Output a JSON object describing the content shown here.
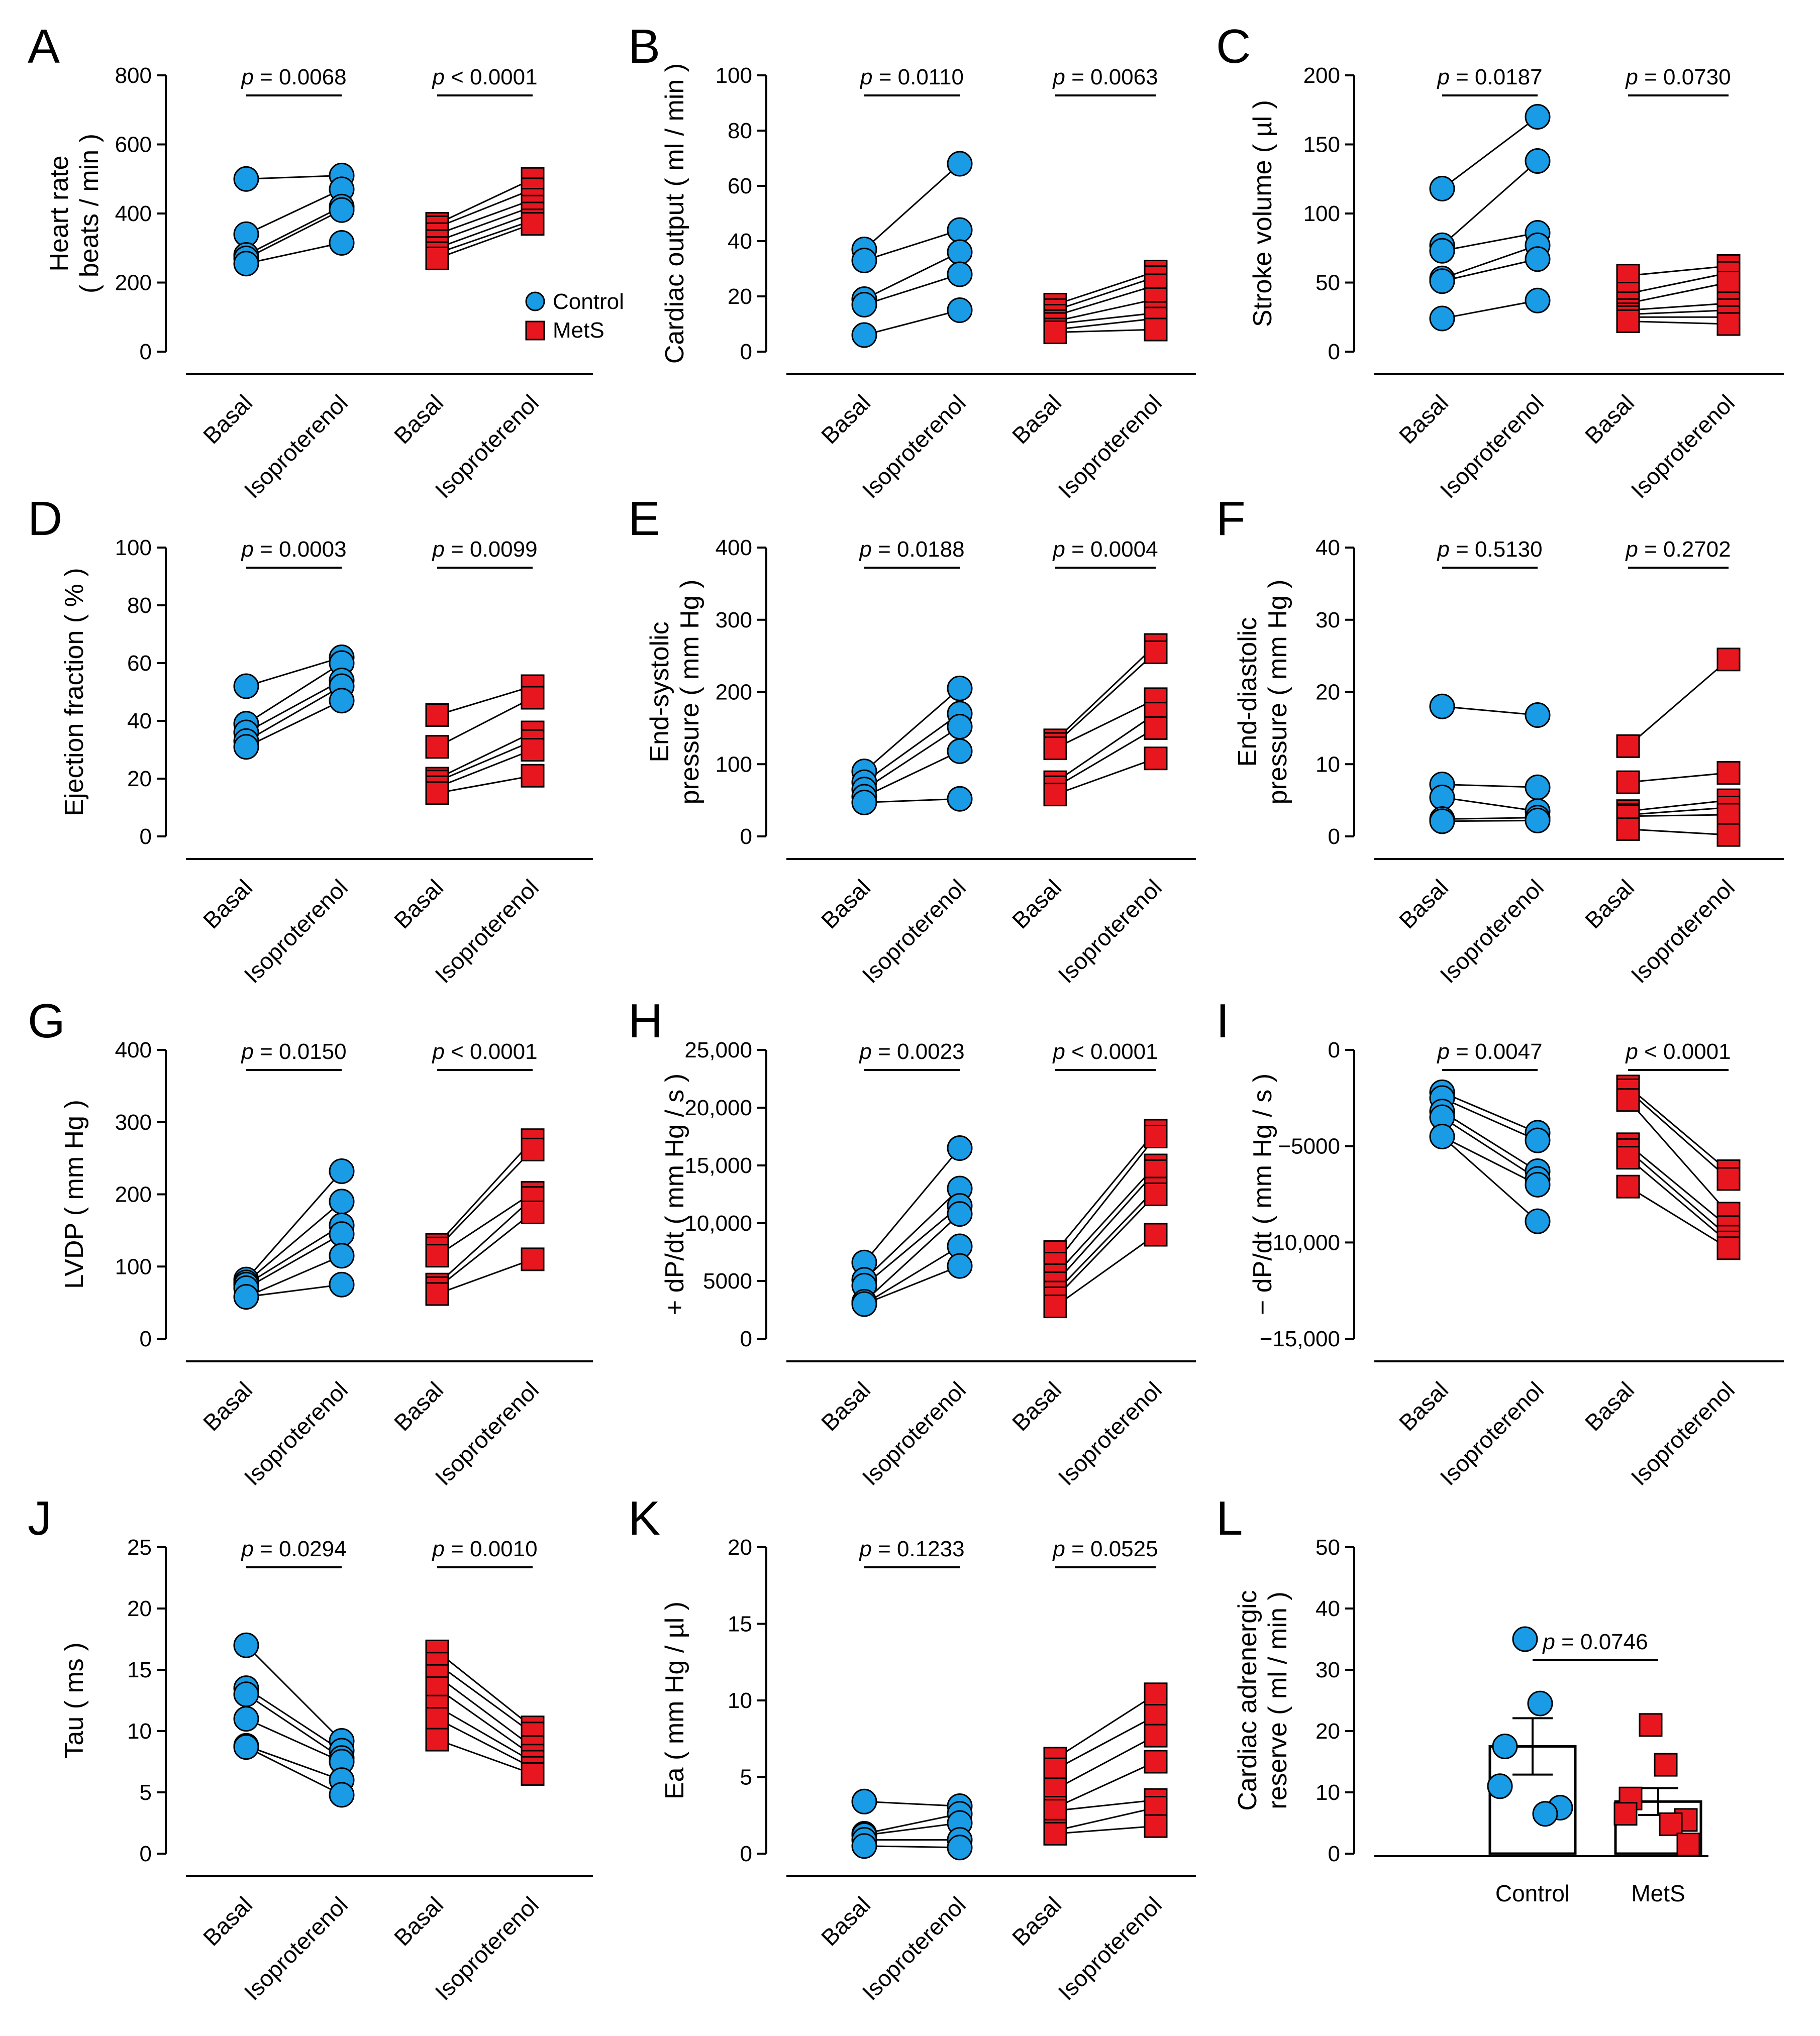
{
  "colors": {
    "control": "#1a9be6",
    "mets": "#e8171f",
    "line": "#000000",
    "bar": "#ffffff"
  },
  "legend": {
    "control": "Control",
    "mets": "MetS"
  },
  "chart_data": [
    {
      "letter": "A",
      "type": "scatter",
      "ylabel": [
        "Heart rate",
        "( beats / min )"
      ],
      "ylim": [
        0,
        800
      ],
      "yticks": [
        0,
        200,
        400,
        600,
        800
      ],
      "ytick_labels": [
        "0",
        "200",
        "400",
        "600",
        "800"
      ],
      "categories": [
        "Basal",
        "Isoproterenol",
        "Basal",
        "Isoproterenol"
      ],
      "pvalues": [
        {
          "prefix": "p",
          "text": " = 0.0068"
        },
        {
          "prefix": "p",
          "text": " < 0.0001"
        }
      ],
      "control": {
        "name": "Control",
        "basal": [
          500,
          340,
          280,
          270,
          255
        ],
        "iso": [
          510,
          470,
          420,
          410,
          315
        ]
      },
      "mets": {
        "name": "MetS",
        "basal": [
          370,
          360,
          340,
          320,
          300,
          285,
          270
        ],
        "iso": [
          500,
          470,
          440,
          420,
          400,
          380,
          370
        ]
      }
    },
    {
      "letter": "B",
      "type": "scatter",
      "ylabel": [
        "Cardiac output ( ml / min )"
      ],
      "ylim": [
        0,
        100
      ],
      "yticks": [
        0,
        20,
        40,
        60,
        80,
        100
      ],
      "ytick_labels": [
        "0",
        "20",
        "40",
        "60",
        "80",
        "100"
      ],
      "categories": [
        "Basal",
        "Isoproterenol",
        "Basal",
        "Isoproterenol"
      ],
      "pvalues": [
        {
          "prefix": "p",
          "text": " = 0.0110"
        },
        {
          "prefix": "p",
          "text": " = 0.0063"
        }
      ],
      "control": {
        "name": "Control",
        "basal": [
          37,
          33,
          19,
          17,
          6
        ],
        "iso": [
          68,
          44,
          36,
          28,
          15
        ]
      },
      "mets": {
        "name": "MetS",
        "basal": [
          17,
          15,
          13,
          11,
          10,
          8,
          7
        ],
        "iso": [
          29,
          27,
          24,
          19,
          14,
          12,
          8
        ]
      }
    },
    {
      "letter": "C",
      "type": "scatter",
      "ylabel": [
        "Stroke volume ( µl )"
      ],
      "ylim": [
        0,
        200
      ],
      "yticks": [
        0,
        50,
        100,
        150,
        200
      ],
      "ytick_labels": [
        "0",
        "50",
        "100",
        "150",
        "200"
      ],
      "categories": [
        "Basal",
        "Isoproterenol",
        "Basal",
        "Isoproterenol"
      ],
      "pvalues": [
        {
          "prefix": "p",
          "text": " = 0.0187"
        },
        {
          "prefix": "p",
          "text": " = 0.0730"
        }
      ],
      "control": {
        "name": "Control",
        "basal": [
          118,
          77,
          73,
          53,
          51,
          24
        ],
        "iso": [
          170,
          138,
          86,
          77,
          67,
          37
        ]
      },
      "mets": {
        "name": "MetS",
        "basal": [
          55,
          42,
          35,
          30,
          27,
          25,
          22
        ],
        "iso": [
          62,
          57,
          50,
          35,
          30,
          25,
          20
        ]
      }
    },
    {
      "letter": "D",
      "type": "scatter",
      "ylabel": [
        "Ejection fraction ( % )"
      ],
      "ylim": [
        0,
        100
      ],
      "yticks": [
        0,
        20,
        40,
        60,
        80,
        100
      ],
      "ytick_labels": [
        "0",
        "20",
        "40",
        "60",
        "80",
        "100"
      ],
      "categories": [
        "Basal",
        "Isoproterenol",
        "Basal",
        "Isoproterenol"
      ],
      "pvalues": [
        {
          "prefix": "p",
          "text": " = 0.0003"
        },
        {
          "prefix": "p",
          "text": " = 0.0099"
        }
      ],
      "control": {
        "name": "Control",
        "basal": [
          52,
          39,
          36,
          33,
          31
        ],
        "iso": [
          62,
          60,
          54,
          52,
          47
        ]
      },
      "mets": {
        "name": "MetS",
        "basal": [
          42,
          31,
          20,
          19,
          17,
          15
        ],
        "iso": [
          52,
          48,
          36,
          33,
          30,
          21
        ]
      }
    },
    {
      "letter": "E",
      "type": "scatter",
      "ylabel": [
        "End-systolic",
        "pressure ( mm Hg )"
      ],
      "ylim": [
        0,
        400
      ],
      "yticks": [
        0,
        100,
        200,
        300,
        400
      ],
      "ytick_labels": [
        "0",
        "100",
        "200",
        "300",
        "400"
      ],
      "categories": [
        "Basal",
        "Isoproterenol",
        "Basal",
        "Isoproterenol"
      ],
      "pvalues": [
        {
          "prefix": "p",
          "text": " = 0.0188"
        },
        {
          "prefix": "p",
          "text": " = 0.0004"
        }
      ],
      "control": {
        "name": "Control",
        "basal": [
          90,
          75,
          65,
          55,
          47
        ],
        "iso": [
          205,
          170,
          152,
          118,
          52
        ]
      },
      "mets": {
        "name": "MetS",
        "basal": [
          133,
          128,
          122,
          75,
          68,
          58
        ],
        "iso": [
          265,
          255,
          190,
          170,
          150,
          108
        ]
      }
    },
    {
      "letter": "F",
      "type": "scatter",
      "ylabel": [
        "End-diastolic",
        "pressure ( mm Hg )"
      ],
      "ylim": [
        0,
        40
      ],
      "yticks": [
        0,
        10,
        20,
        30,
        40
      ],
      "ytick_labels": [
        "0",
        "10",
        "20",
        "30",
        "40"
      ],
      "categories": [
        "Basal",
        "Isoproterenol",
        "Basal",
        "Isoproterenol"
      ],
      "pvalues": [
        {
          "prefix": "p",
          "text": " = 0.5130"
        },
        {
          "prefix": "p",
          "text": " = 0.2702"
        }
      ],
      "control": {
        "name": "Control",
        "basal": [
          18,
          7.2,
          5.4,
          2.4,
          2.1
        ],
        "iso": [
          16.8,
          6.8,
          3.5,
          2.6,
          2.2
        ]
      },
      "mets": {
        "name": "MetS",
        "basal": [
          12.5,
          7.5,
          3.5,
          3,
          2.8,
          1
        ],
        "iso": [
          24.5,
          8.8,
          5,
          4,
          3,
          0.2
        ]
      }
    },
    {
      "letter": "G",
      "type": "scatter",
      "ylabel": [
        "LVDP ( mm Hg )"
      ],
      "ylim": [
        0,
        400
      ],
      "yticks": [
        0,
        100,
        200,
        300,
        400
      ],
      "ytick_labels": [
        "0",
        "100",
        "200",
        "300",
        "400"
      ],
      "categories": [
        "Basal",
        "Isoproterenol",
        "Basal",
        "Isoproterenol"
      ],
      "pvalues": [
        {
          "prefix": "p",
          "text": " = 0.0150"
        },
        {
          "prefix": "p",
          "text": " < 0.0001"
        }
      ],
      "control": {
        "name": "Control",
        "basal": [
          82,
          78,
          75,
          70,
          58
        ],
        "iso": [
          232,
          190,
          157,
          145,
          115,
          75
        ]
      },
      "mets": {
        "name": "MetS",
        "basal": [
          130,
          125,
          115,
          75,
          70,
          62
        ],
        "iso": [
          275,
          262,
          202,
          195,
          175,
          110
        ]
      }
    },
    {
      "letter": "H",
      "type": "scatter",
      "ylabel": [
        "+ dP/dt ( mm Hg / s )"
      ],
      "ylim": [
        0,
        25000
      ],
      "yticks": [
        0,
        5000,
        10000,
        15000,
        20000,
        25000
      ],
      "ytick_labels": [
        "0",
        "5000",
        "10,000",
        "15,000",
        "20,000",
        "25,000"
      ],
      "categories": [
        "Basal",
        "Isoproterenol",
        "Basal",
        "Isoproterenol"
      ],
      "pvalues": [
        {
          "prefix": "p",
          "text": " = 0.0023"
        },
        {
          "prefix": "p",
          "text": " < 0.0001"
        }
      ],
      "control": {
        "name": "Control",
        "basal": [
          6600,
          5100,
          4600,
          3200,
          3000
        ],
        "iso": [
          16500,
          13000,
          11500,
          10800,
          8000,
          6300
        ]
      },
      "mets": {
        "name": "MetS",
        "basal": [
          7500,
          6500,
          5500,
          4800,
          4000,
          3500,
          2800
        ],
        "iso": [
          18000,
          17500,
          15000,
          14500,
          13000,
          12500,
          9000
        ]
      }
    },
    {
      "letter": "I",
      "type": "scatter",
      "ylabel": [
        "− dP/dt ( mm Hg / s )"
      ],
      "ylim": [
        -15000,
        0
      ],
      "yticks": [
        0,
        -5000,
        -10000,
        -15000
      ],
      "ytick_labels": [
        "0",
        "−5000",
        "−10,000",
        "−15,000"
      ],
      "categories": [
        "Basal",
        "Isoproterenol",
        "Basal",
        "Isoproterenol"
      ],
      "pvalues": [
        {
          "prefix": "p",
          "text": " = 0.0047"
        },
        {
          "prefix": "p",
          "text": " < 0.0001"
        }
      ],
      "control": {
        "name": "Control",
        "basal": [
          -2200,
          -2500,
          -3200,
          -3500,
          -4500
        ],
        "iso": [
          -4300,
          -4700,
          -6300,
          -6700,
          -7000,
          -8900
        ]
      },
      "mets": {
        "name": "MetS",
        "basal": [
          -1900,
          -2100,
          -2600,
          -4900,
          -5200,
          -5600,
          -7100
        ],
        "iso": [
          -6300,
          -6700,
          -8500,
          -9200,
          -9700,
          -10000,
          -10300
        ]
      }
    },
    {
      "letter": "J",
      "type": "scatter",
      "ylabel": [
        "Tau ( ms )"
      ],
      "ylim": [
        0,
        25
      ],
      "yticks": [
        0,
        5,
        10,
        15,
        20,
        25
      ],
      "ytick_labels": [
        "0",
        "5",
        "10",
        "15",
        "20",
        "25"
      ],
      "categories": [
        "Basal",
        "Isoproterenol",
        "Basal",
        "Isoproterenol"
      ],
      "pvalues": [
        {
          "prefix": "p",
          "text": " = 0.0294"
        },
        {
          "prefix": "p",
          "text": " = 0.0010"
        }
      ],
      "control": {
        "name": "Control",
        "basal": [
          17,
          13.5,
          13,
          11,
          8.8,
          8.7
        ],
        "iso": [
          9.2,
          8.4,
          7.8,
          7.5,
          6,
          4.8
        ]
      },
      "mets": {
        "name": "MetS",
        "basal": [
          16.5,
          15.5,
          14.5,
          13.5,
          12,
          11,
          9.3
        ],
        "iso": [
          10.3,
          9.8,
          8.7,
          8,
          7.5,
          7,
          6.5
        ]
      }
    },
    {
      "letter": "K",
      "type": "scatter",
      "ylabel": [
        "Ea ( mm Hg / µl )"
      ],
      "ylim": [
        0,
        20
      ],
      "yticks": [
        0,
        5,
        10,
        15,
        20
      ],
      "ytick_labels": [
        "0",
        "5",
        "10",
        "15",
        "20"
      ],
      "categories": [
        "Basal",
        "Isoproterenol",
        "Basal",
        "Isoproterenol"
      ],
      "pvalues": [
        {
          "prefix": "p",
          "text": " = 0.1233"
        },
        {
          "prefix": "p",
          "text": " = 0.0525"
        }
      ],
      "control": {
        "name": "Control",
        "basal": [
          3.4,
          1.3,
          1.2,
          0.9,
          0.5
        ],
        "iso": [
          3.1,
          2.6,
          2,
          0.9,
          0.4
        ]
      },
      "mets": {
        "name": "MetS",
        "basal": [
          6.2,
          5.5,
          4.2,
          3,
          2.8,
          1.5,
          1.3
        ],
        "iso": [
          10.4,
          9,
          7.7,
          6,
          3.5,
          3,
          1.8
        ]
      }
    },
    {
      "letter": "L",
      "type": "bar",
      "ylabel": [
        "Cardiac adrenergic",
        "reserve ( ml / min )"
      ],
      "ylim": [
        0,
        50
      ],
      "yticks": [
        0,
        10,
        20,
        30,
        40,
        50
      ],
      "ytick_labels": [
        "0",
        "10",
        "20",
        "30",
        "40",
        "50"
      ],
      "categories": [
        "Control",
        "MetS"
      ],
      "pvalues": [
        {
          "prefix": "p",
          "text": " = 0.0746"
        }
      ],
      "bars": [
        {
          "name": "Control",
          "mean": 17.5,
          "sem": 4.6,
          "points": [
            35,
            24.5,
            17.5,
            11,
            7.5,
            6.5
          ]
        },
        {
          "name": "MetS",
          "mean": 8.5,
          "sem": 2.2,
          "points": [
            21,
            14.5,
            9,
            6.5,
            5.5,
            4.8,
            1.5
          ]
        }
      ]
    }
  ]
}
